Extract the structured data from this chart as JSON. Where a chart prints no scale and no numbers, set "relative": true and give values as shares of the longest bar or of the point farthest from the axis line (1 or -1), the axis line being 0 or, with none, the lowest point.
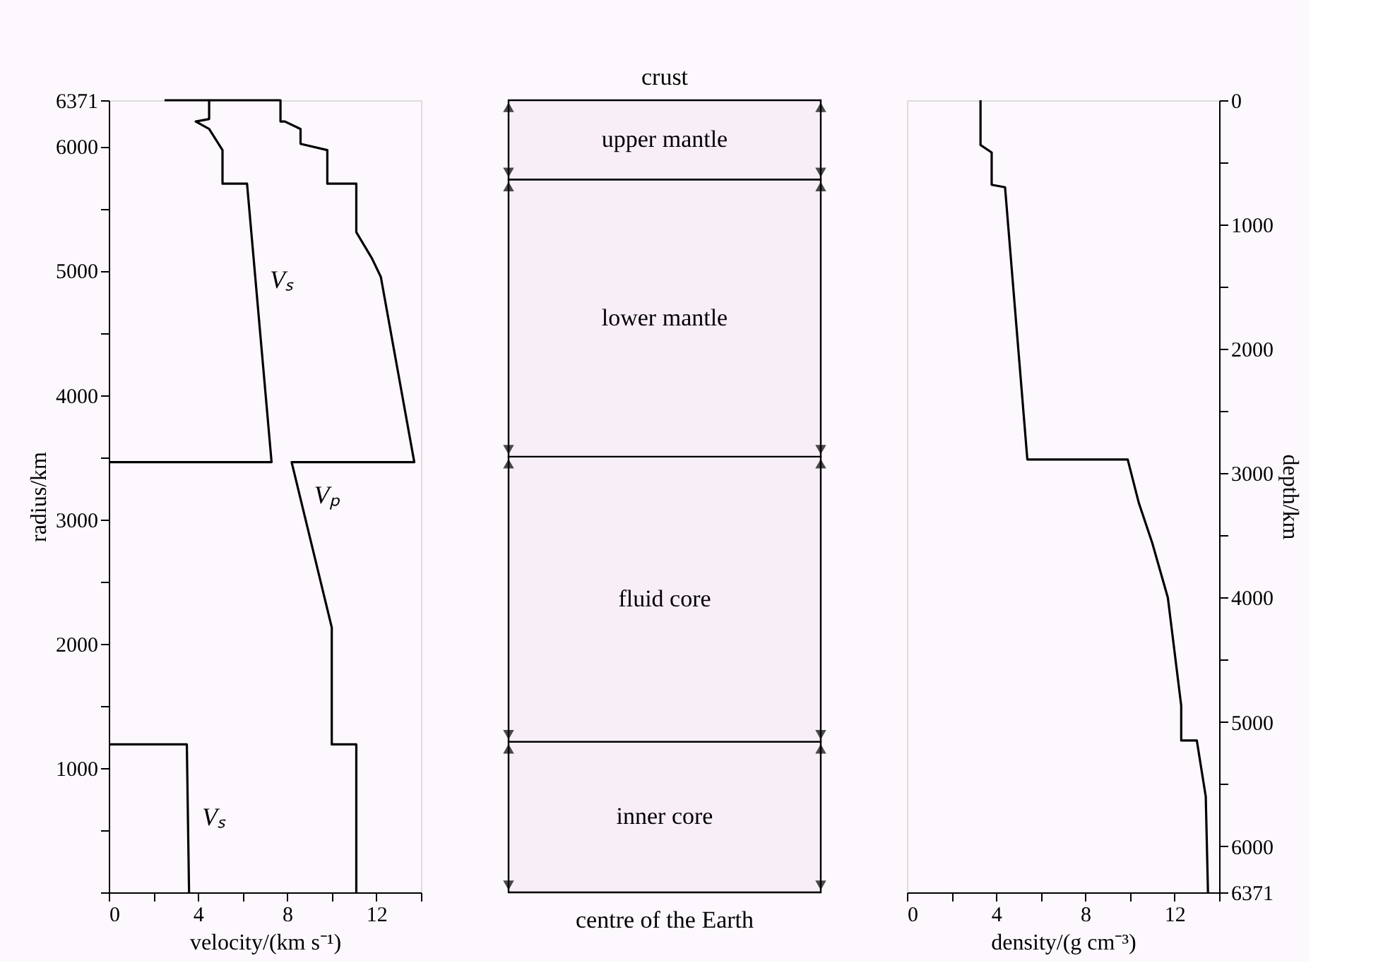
{
  "chart_data": [
    {
      "type": "line",
      "xlabel": "velocity/(km s⁻¹)",
      "ylabel": "radius/km",
      "xlim": [
        0,
        14
      ],
      "xticks": [
        0,
        {
          "value": 2,
          "label": null
        },
        4,
        {
          "value": 6,
          "label": null
        },
        8,
        {
          "value": 10,
          "label": null
        },
        12,
        {
          "value": 14,
          "label": null
        }
      ],
      "ylim": [
        0,
        6371
      ],
      "yticks": [
        {
          "value": 0,
          "label": null
        },
        {
          "value": 500,
          "label": null
        },
        1000,
        {
          "value": 1500,
          "label": null
        },
        2000,
        {
          "value": 2500,
          "label": null
        },
        3000,
        {
          "value": 3500,
          "label": null
        },
        4000,
        {
          "value": 4500,
          "label": null
        },
        5000,
        {
          "value": 5500,
          "label": null
        },
        6000,
        6371
      ],
      "grid": false,
      "series": [
        {
          "name": "Vₛ",
          "color": "#000000",
          "x": [
            2.5,
            4.5,
            4.5,
            3.9,
            4.5,
            5.1,
            5.1,
            6.2,
            7.3,
            0,
            null,
            0,
            3.5,
            3.6
          ],
          "values": [
            6371,
            6371,
            6220,
            6200,
            6140,
            5970,
            5700,
            5700,
            3460,
            3460,
            null,
            1190,
            1190,
            0
          ]
        },
        {
          "name": "Vₚ",
          "color": "#000000",
          "x": [
            4.5,
            7.7,
            7.7,
            7.9,
            8.6,
            8.6,
            9.8,
            9.8,
            11.1,
            11.1,
            11.8,
            12.2,
            13.7,
            8.2,
            10.0,
            10.0,
            11.1,
            11.1
          ],
          "values": [
            6371,
            6371,
            6200,
            6200,
            6140,
            6020,
            5970,
            5700,
            5700,
            5310,
            5100,
            4950,
            3460,
            3460,
            2130,
            1190,
            1190,
            0
          ]
        }
      ]
    },
    {
      "type": "bar",
      "stacked": true,
      "relative": true,
      "categories": [
        null
      ],
      "annotations": [
        "crust",
        "centre of the Earth"
      ],
      "series": [
        {
          "name": "inner core",
          "color": "#f8eef8",
          "values": [
            0.19
          ]
        },
        {
          "name": "fluid core",
          "color": "#f8eef8",
          "values": [
            0.36
          ]
        },
        {
          "name": "lower mantle",
          "color": "#f8eef8",
          "values": [
            0.35
          ]
        },
        {
          "name": "upper mantle",
          "color": "#f8eef8",
          "values": [
            0.1
          ]
        }
      ]
    },
    {
      "type": "line",
      "xlabel": "density/(g cm⁻³)",
      "y2label": "depth/km",
      "xlim": [
        0,
        14
      ],
      "xticks": [
        0,
        {
          "value": 2,
          "label": null
        },
        4,
        {
          "value": 6,
          "label": null
        },
        8,
        {
          "value": 10,
          "label": null
        },
        12,
        {
          "value": 14,
          "label": null
        }
      ],
      "y2lim": [
        6371,
        0
      ],
      "y2ticks": [
        0,
        {
          "value": 500,
          "label": null
        },
        1000,
        {
          "value": 1500,
          "label": null
        },
        2000,
        {
          "value": 2500,
          "label": null
        },
        3000,
        {
          "value": 3500,
          "label": null
        },
        4000,
        {
          "value": 4500,
          "label": null
        },
        5000,
        {
          "value": 5500,
          "label": null
        },
        6000,
        6371
      ],
      "grid": false,
      "series": [
        {
          "color": "#000000",
          "axis": "y2",
          "x": [
            3.3,
            3.3,
            3.8,
            3.8,
            4.4,
            5.4,
            9.9,
            10.4,
            11.0,
            11.7,
            12.3,
            12.3,
            13.0,
            13.4,
            13.5
          ],
          "values": [
            0,
            360,
            420,
            680,
            700,
            2890,
            2890,
            3240,
            3560,
            4000,
            4870,
            5150,
            5150,
            5600,
            6371
          ]
        }
      ]
    }
  ]
}
